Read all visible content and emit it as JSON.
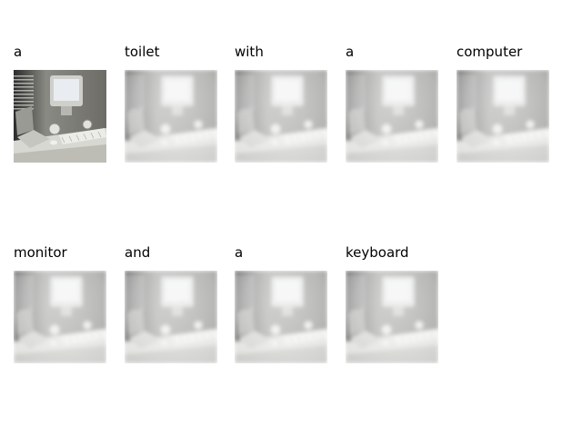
{
  "figure": {
    "tiles": [
      {
        "word": "a",
        "image": "photo-of-desk-with-computer-monitor-and-keyboard",
        "attention": "none"
      },
      {
        "word": "toilet",
        "image": "photo-of-desk-with-computer-monitor-and-keyboard",
        "attention": "overlay"
      },
      {
        "word": "with",
        "image": "photo-of-desk-with-computer-monitor-and-keyboard",
        "attention": "overlay"
      },
      {
        "word": "a",
        "image": "photo-of-desk-with-computer-monitor-and-keyboard",
        "attention": "overlay"
      },
      {
        "word": "computer",
        "image": "photo-of-desk-with-computer-monitor-and-keyboard",
        "attention": "overlay"
      },
      {
        "word": "monitor",
        "image": "photo-of-desk-with-computer-monitor-and-keyboard",
        "attention": "overlay"
      },
      {
        "word": "and",
        "image": "photo-of-desk-with-computer-monitor-and-keyboard",
        "attention": "overlay"
      },
      {
        "word": "a",
        "image": "photo-of-desk-with-computer-monitor-and-keyboard",
        "attention": "overlay"
      },
      {
        "word": "keyboard",
        "image": "photo-of-desk-with-computer-monitor-and-keyboard",
        "attention": "overlay"
      }
    ]
  }
}
